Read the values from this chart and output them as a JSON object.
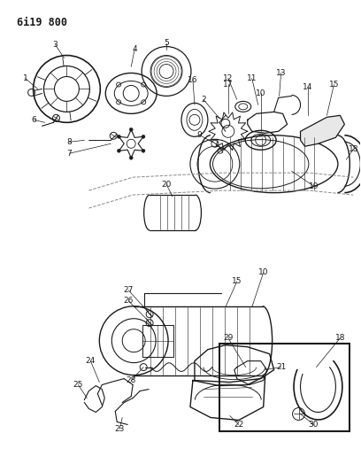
{
  "title": "6i19 800",
  "bg_color": "#ffffff",
  "line_color": "#1a1a1a",
  "fig_width": 4.08,
  "fig_height": 5.33,
  "dpi": 100
}
